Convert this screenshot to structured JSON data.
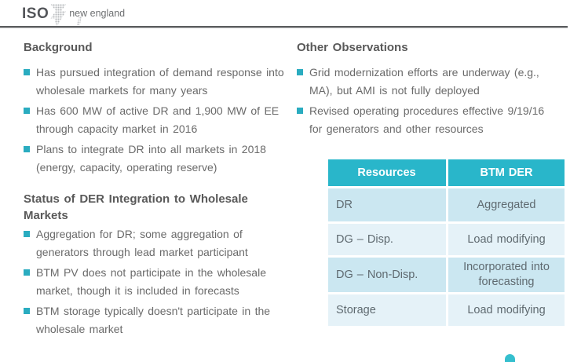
{
  "logo": {
    "iso": "ISO",
    "name": "new england"
  },
  "left": {
    "background": {
      "heading": "Background",
      "bullets": [
        "Has pursued integration of demand response into wholesale markets for many years",
        "Has 600 MW of active DR and 1,900 MW of EE through capacity market in 2016",
        "Plans to integrate DR into all markets in 2018 (energy, capacity, operating reserve)"
      ]
    },
    "status": {
      "heading": "Status of DER Integration to Wholesale Markets",
      "bullets": [
        "Aggregation for DR; some aggregation of generators through lead market participant",
        "BTM PV does not participate in the wholesale market, though it is included in forecasts",
        "BTM storage typically doesn't participate in the wholesale market"
      ]
    }
  },
  "right": {
    "observations": {
      "heading": "Other Observations",
      "bullets": [
        "Grid modernization efforts are underway (e.g., MA), but AMI is not fully deployed",
        "Revised operating procedures effective 9/19/16 for generators and other resources"
      ]
    },
    "table": {
      "headers": [
        "Resources",
        "BTM DER"
      ],
      "rows": [
        [
          "DR",
          "Aggregated"
        ],
        [
          "DG – Disp.",
          "Load modifying"
        ],
        [
          "DG – Non-Disp.",
          "Incorporated into forecasting"
        ],
        [
          "Storage",
          "Load modifying"
        ]
      ]
    }
  },
  "colors": {
    "accent_teal": "#29b6ca",
    "bullet_teal": "#2aacc0",
    "table_row_blue": "#cbe7f1",
    "table_row_light": "#e5f2f8",
    "heading_gray": "#595959",
    "body_gray": "#6a6a6a"
  }
}
